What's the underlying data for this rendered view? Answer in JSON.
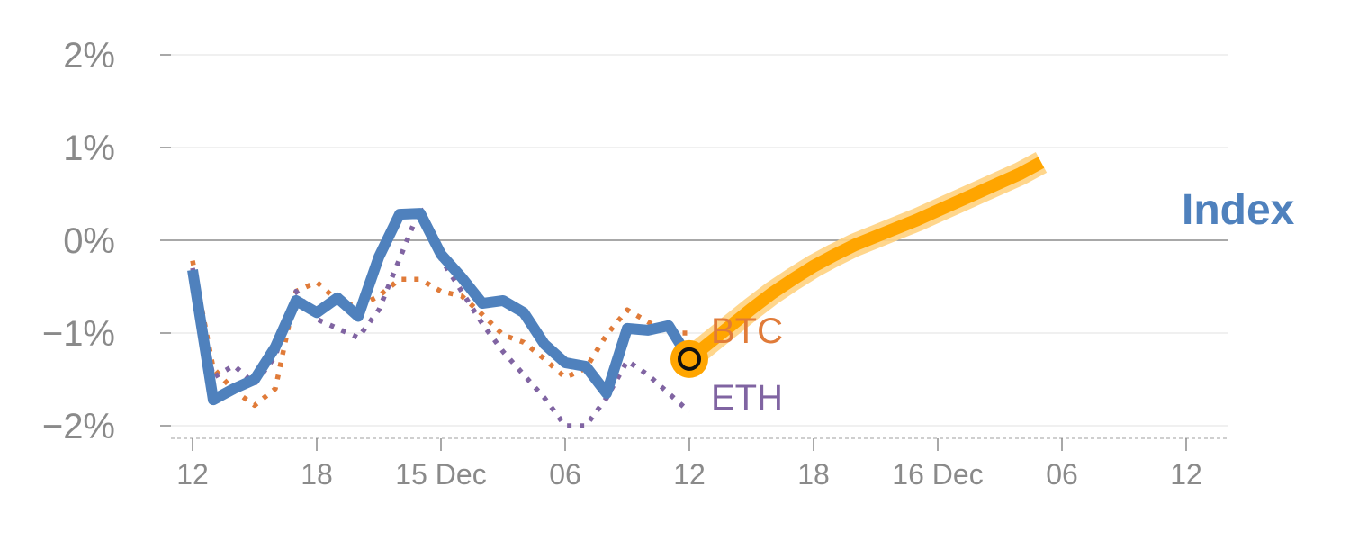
{
  "chart_data": {
    "type": "line",
    "x_ticks": [
      "12",
      "18",
      "15 Dec",
      "06",
      "12",
      "18",
      "16 Dec",
      "06",
      "12"
    ],
    "y_ticks": [
      "2%",
      "1%",
      "0%",
      "−1%",
      "−2%"
    ],
    "ylim": [
      -2,
      2
    ],
    "y_unit": "%",
    "grid": true,
    "x_step_hours": 6,
    "series": [
      {
        "name": "Index",
        "color": "#4f81bd",
        "style": "solid",
        "values": [
          -0.32,
          -1.72,
          -1.6,
          -1.5,
          -1.15,
          -0.65,
          -0.78,
          -0.62,
          -0.82,
          -0.18,
          0.28,
          0.29,
          -0.15,
          -0.4,
          -0.68,
          -0.65,
          -0.78,
          -1.12,
          -1.32,
          -1.36,
          -1.65,
          -0.95,
          -0.97,
          -0.92,
          -1.28
        ]
      },
      {
        "name": "BTC",
        "color": "#e07b39",
        "style": "dotted",
        "values": [
          -0.22,
          -1.38,
          -1.62,
          -1.78,
          -1.6,
          -0.55,
          -0.45,
          -0.65,
          -0.72,
          -0.6,
          -0.42,
          -0.42,
          -0.55,
          -0.6,
          -0.8,
          -1.02,
          -1.1,
          -1.28,
          -1.48,
          -1.38,
          -1.02,
          -0.75,
          -0.88,
          -1.0,
          -1.0
        ]
      },
      {
        "name": "ETH",
        "color": "#8064a2",
        "style": "dotted",
        "values": [
          -0.3,
          -1.48,
          -1.35,
          -1.55,
          -1.25,
          -0.55,
          -0.85,
          -0.95,
          -1.05,
          -0.75,
          -0.2,
          0.35,
          -0.2,
          -0.55,
          -0.9,
          -1.2,
          -1.45,
          -1.7,
          -2.0,
          -2.0,
          -1.7,
          -1.3,
          -1.45,
          -1.65,
          -1.85
        ]
      },
      {
        "name": "Index",
        "color": "#ffa500",
        "style": "forecast",
        "values": [
          -1.28,
          -1.1,
          -0.92,
          -0.74,
          -0.57,
          -0.42,
          -0.28,
          -0.16,
          -0.05,
          0.04,
          0.13,
          0.22,
          0.32,
          0.42,
          0.52,
          0.62,
          0.72,
          0.84
        ]
      }
    ],
    "labels": {
      "btc": "BTC",
      "eth": "ETH",
      "index": "Index"
    }
  }
}
